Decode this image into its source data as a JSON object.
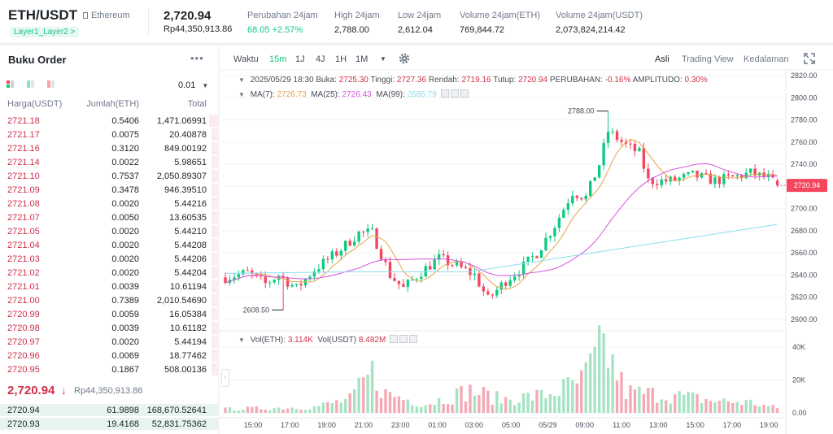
{
  "header": {
    "pair": "ETH/USDT",
    "pair_name": "Ethereum",
    "tag": "Layer1_Layer2 >",
    "last_price": "2,720.94",
    "last_price_idr": "Rp44,350,913.86",
    "stats": [
      {
        "label": "Perubahan 24jam",
        "value": "68.05 +2.57%",
        "trend": "up"
      },
      {
        "label": "High 24jam",
        "value": "2,788.00",
        "trend": "none"
      },
      {
        "label": "Low 24jam",
        "value": "2,612.04",
        "trend": "none"
      },
      {
        "label": "Volume 24jam(ETH)",
        "value": "769,844.72",
        "trend": "none"
      },
      {
        "label": "Volume 24jam(USDT)",
        "value": "2,073,824,214.42",
        "trend": "none"
      }
    ]
  },
  "orderbook": {
    "title": "Buku Order",
    "more_icon": "more-dots-icon",
    "precision": "0.01",
    "columns": {
      "price": "Harga(USDT)",
      "amount": "Jumlah(ETH)",
      "total": "Total"
    },
    "asks": [
      {
        "price": "2721.18",
        "amount": "0.5406",
        "total": "1,471.06991",
        "depth": 0.04
      },
      {
        "price": "2721.17",
        "amount": "0.0075",
        "total": "20.40878",
        "depth": 0.03
      },
      {
        "price": "2721.16",
        "amount": "0.3120",
        "total": "849.00192",
        "depth": 0.03
      },
      {
        "price": "2721.14",
        "amount": "0.0022",
        "total": "5.98651",
        "depth": 0.03
      },
      {
        "price": "2721.10",
        "amount": "0.7537",
        "total": "2,050.89307",
        "depth": 0.03
      },
      {
        "price": "2721.09",
        "amount": "0.3478",
        "total": "946.39510",
        "depth": 0.03
      },
      {
        "price": "2721.08",
        "amount": "0.0020",
        "total": "5.44216",
        "depth": 0.03
      },
      {
        "price": "2721.07",
        "amount": "0.0050",
        "total": "13.60535",
        "depth": 0.03
      },
      {
        "price": "2721.05",
        "amount": "0.0020",
        "total": "5.44210",
        "depth": 0.03
      },
      {
        "price": "2721.04",
        "amount": "0.0020",
        "total": "5.44208",
        "depth": 0.03
      },
      {
        "price": "2721.03",
        "amount": "0.0020",
        "total": "5.44206",
        "depth": 0.03
      },
      {
        "price": "2721.02",
        "amount": "0.0020",
        "total": "5.44204",
        "depth": 0.03
      },
      {
        "price": "2721.01",
        "amount": "0.0039",
        "total": "10.61194",
        "depth": 0.03
      },
      {
        "price": "2721.00",
        "amount": "0.7389",
        "total": "2,010.54690",
        "depth": 0.03
      },
      {
        "price": "2720.99",
        "amount": "0.0059",
        "total": "16.05384",
        "depth": 0.03
      },
      {
        "price": "2720.98",
        "amount": "0.0039",
        "total": "10.61182",
        "depth": 0.03
      },
      {
        "price": "2720.97",
        "amount": "0.0020",
        "total": "5.44194",
        "depth": 0.03
      },
      {
        "price": "2720.96",
        "amount": "0.0069",
        "total": "18.77462",
        "depth": 0.03
      },
      {
        "price": "2720.95",
        "amount": "0.1867",
        "total": "508.00136",
        "depth": 0.03
      }
    ],
    "mid_price": "2,720.94",
    "mid_arrow": "↓",
    "mid_price_idr": "Rp44,350,913.86",
    "bids": [
      {
        "price": "2720.94",
        "amount": "61.9898",
        "total": "168,670.52641",
        "depth": 1.0
      },
      {
        "price": "2720.93",
        "amount": "19.4168",
        "total": "52,831.75362",
        "depth": 1.0
      }
    ]
  },
  "toolbar": {
    "time_label": "Waktu",
    "intervals": [
      "15m",
      "1J",
      "4J",
      "1H",
      "1M"
    ],
    "active_interval": "15m",
    "settings_icon": "gear-icon",
    "views": [
      "Asli",
      "Trading View",
      "Kedalaman"
    ],
    "active_view": "Asli",
    "fullscreen_icon": "expand-icon"
  },
  "legend": {
    "ohlc_label": "2025/05/29 18:30",
    "open_label": "Buka:",
    "open": "2725.30",
    "high_label": "Tinggi:",
    "high": "2727.36",
    "low_label": "Rendah:",
    "low": "2719.16",
    "close_label": "Tutup:",
    "close": "2720.94",
    "change_label": "PERUBAHAN:",
    "change": "-0.16%",
    "amp_label": "AMPLITUDO:",
    "amp": "0.30%",
    "ma7_label": "MA(7):",
    "ma7": "2726.73",
    "ma25_label": "MA(25):",
    "ma25": "2726.43",
    "ma99_label": "MA(99):",
    "ma99": "2685.79",
    "vol_label": "Vol(ETH):",
    "vol": "3.114K",
    "volq_label": "Vol(USDT)",
    "volq": "8.482M"
  },
  "chart_data": {
    "type": "candlestick",
    "price_axis": {
      "min": 2600,
      "max": 2820,
      "ticks": [
        "2820.00",
        "2800.00",
        "2780.00",
        "2760.00",
        "2740.00",
        "2720.00",
        "2700.00",
        "2680.00",
        "2660.00",
        "2640.00",
        "2620.00",
        "2600.00"
      ]
    },
    "volume_axis": {
      "min": 0,
      "max": 45000,
      "ticks": [
        "40K",
        "20K",
        "0.00"
      ]
    },
    "time_ticks": [
      "15:00",
      "17:00",
      "19:00",
      "21:00",
      "23:00",
      "01:00",
      "03:00",
      "05:00",
      "05/29",
      "09:00",
      "11:00",
      "13:00",
      "15:00",
      "17:00",
      "19:00"
    ],
    "last_price_label": "2720.94",
    "high_marker": "2788.00",
    "low_marker": "2608.50",
    "colors": {
      "up": "#0ecb81",
      "down": "#f6465d",
      "ma7": "#e8a24a",
      "ma25": "#d555e0",
      "ma99": "#8cdcf0"
    },
    "anchors": [
      {
        "t": 0,
        "p": 2638
      },
      {
        "t": 5,
        "p": 2642
      },
      {
        "t": 9,
        "p": 2632
      },
      {
        "t": 12,
        "p": 2640
      },
      {
        "t": 16,
        "p": 2628
      },
      {
        "t": 20,
        "p": 2645
      },
      {
        "t": 25,
        "p": 2660
      },
      {
        "t": 30,
        "p": 2678
      },
      {
        "t": 33,
        "p": 2678
      },
      {
        "t": 37,
        "p": 2640
      },
      {
        "t": 40,
        "p": 2628
      },
      {
        "t": 44,
        "p": 2643
      },
      {
        "t": 48,
        "p": 2655
      },
      {
        "t": 52,
        "p": 2648
      },
      {
        "t": 56,
        "p": 2640
      },
      {
        "t": 59,
        "p": 2618
      },
      {
        "t": 63,
        "p": 2635
      },
      {
        "t": 67,
        "p": 2648
      },
      {
        "t": 70,
        "p": 2660
      },
      {
        "t": 74,
        "p": 2685
      },
      {
        "t": 78,
        "p": 2715
      },
      {
        "t": 81,
        "p": 2710
      },
      {
        "t": 84,
        "p": 2740
      },
      {
        "t": 86,
        "p": 2770
      },
      {
        "t": 90,
        "p": 2757
      },
      {
        "t": 93,
        "p": 2750
      },
      {
        "t": 95,
        "p": 2725
      },
      {
        "t": 100,
        "p": 2725
      },
      {
        "t": 105,
        "p": 2730
      },
      {
        "t": 110,
        "p": 2725
      },
      {
        "t": 114,
        "p": 2728
      },
      {
        "t": 118,
        "p": 2732
      },
      {
        "t": 122,
        "p": 2727
      },
      {
        "t": 124,
        "p": 2721
      }
    ],
    "volume_anchors": [
      {
        "t": 0,
        "v": 2500
      },
      {
        "t": 20,
        "v": 4000
      },
      {
        "t": 28,
        "v": 9000
      },
      {
        "t": 33,
        "v": 27000
      },
      {
        "t": 36,
        "v": 13000
      },
      {
        "t": 45,
        "v": 6000
      },
      {
        "t": 55,
        "v": 15000
      },
      {
        "t": 62,
        "v": 9000
      },
      {
        "t": 72,
        "v": 12000
      },
      {
        "t": 80,
        "v": 21000
      },
      {
        "t": 85,
        "v": 45000
      },
      {
        "t": 90,
        "v": 14000
      },
      {
        "t": 100,
        "v": 12000
      },
      {
        "t": 110,
        "v": 8000
      },
      {
        "t": 118,
        "v": 7000
      },
      {
        "t": 124,
        "v": 3000
      }
    ],
    "num_candles": 125
  }
}
